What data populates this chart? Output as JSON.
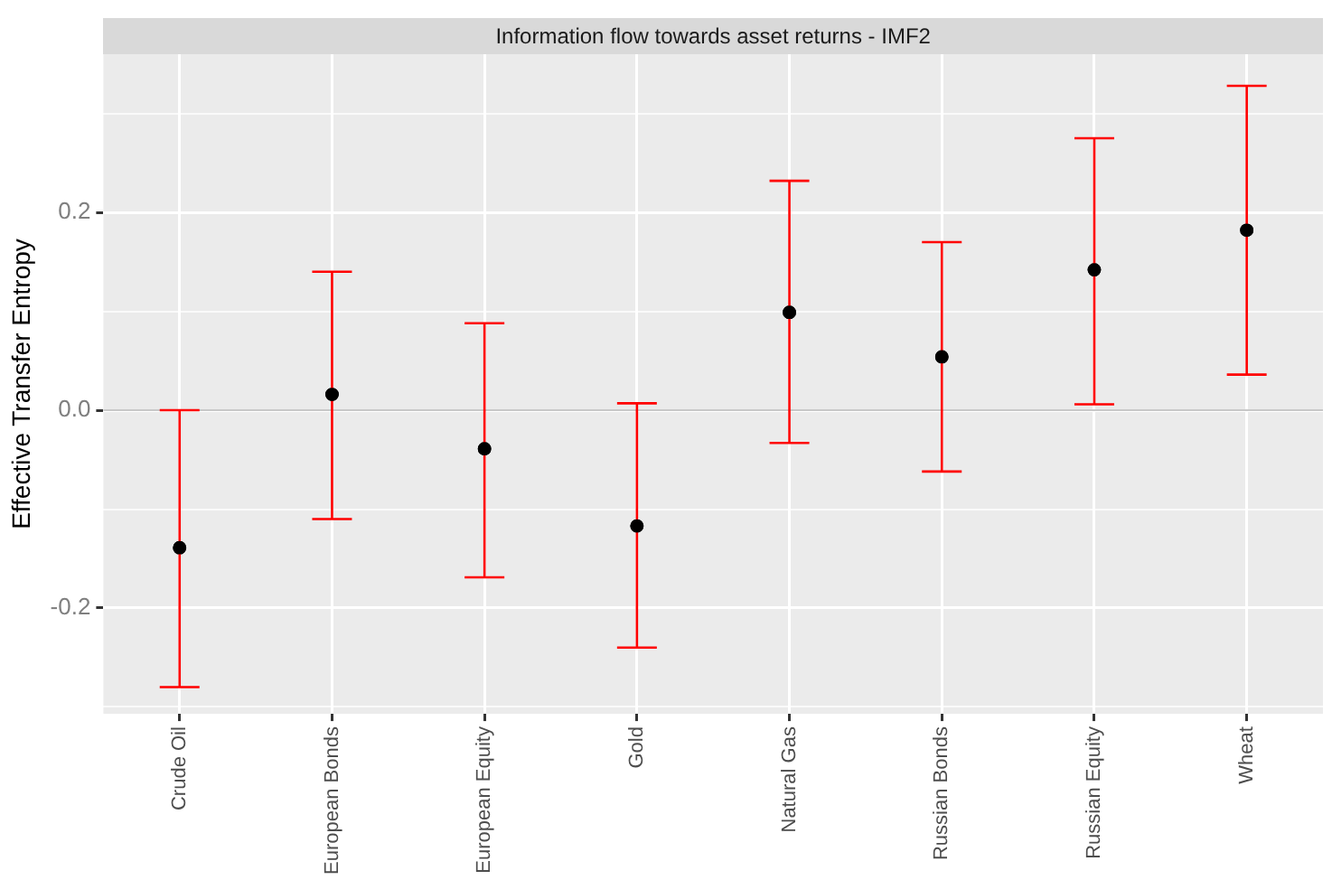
{
  "chart_data": {
    "type": "scatter",
    "title": "Information flow towards asset returns  - IMF2",
    "ylabel": "Effective Transfer Entropy",
    "categories": [
      "Crude Oil",
      "European Bonds",
      "European Equity",
      "Gold",
      "Natural Gas",
      "Russian Bonds",
      "Russian Equity",
      "Wheat"
    ],
    "series": [
      {
        "color": "#000000",
        "values": [
          -0.139,
          0.016,
          -0.039,
          -0.117,
          0.099,
          0.054,
          0.142,
          0.182
        ],
        "errors": [
          [
            -0.28,
            0.0
          ],
          [
            -0.11,
            0.14
          ],
          [
            -0.169,
            0.088
          ],
          [
            -0.24,
            0.007
          ],
          [
            -0.033,
            0.232
          ],
          [
            -0.062,
            0.17
          ],
          [
            0.006,
            0.275
          ],
          [
            0.036,
            0.328
          ]
        ]
      }
    ],
    "ylim": [
      -0.307,
      0.36
    ],
    "yticks": [
      {
        "value": -0.3,
        "label": null
      },
      {
        "value": -0.2,
        "label": "-0.2"
      },
      {
        "value": -0.1,
        "label": null
      },
      {
        "value": 0,
        "label": "0.0"
      },
      {
        "value": 0.1,
        "label": null
      },
      {
        "value": 0.2,
        "label": "0.2"
      },
      {
        "value": 0.3,
        "label": null
      }
    ],
    "ref_lines": [
      {
        "axis": "y",
        "value": 0,
        "color": "#c8c8c8"
      }
    ],
    "grid": true,
    "legend": false,
    "marker": "circle"
  }
}
